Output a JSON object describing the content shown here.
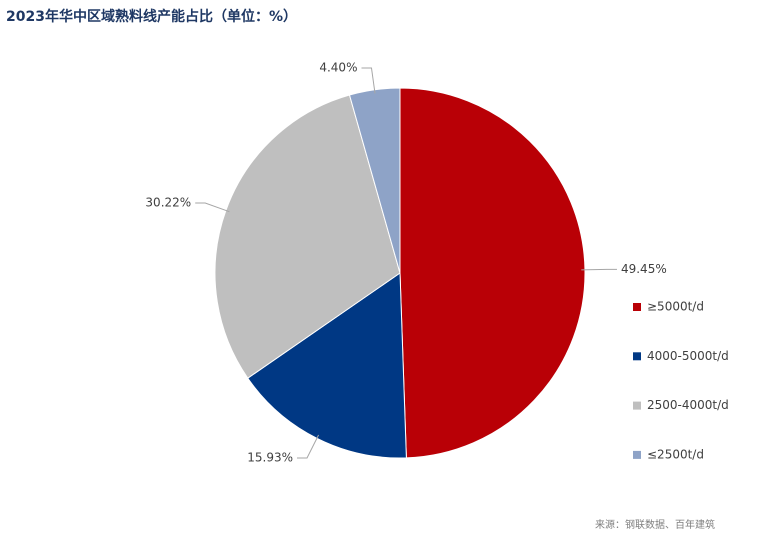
{
  "chart_data": {
    "type": "pie",
    "title": "2023年华中区域熟料线产能占比（单位：%）",
    "categories": [
      "≥5000t/d",
      "4000-5000t/d",
      "2500-4000t/d",
      "≤2500t/d"
    ],
    "values": [
      49.45,
      15.93,
      30.22,
      4.4
    ],
    "value_labels": [
      "49.45%",
      "15.93%",
      "30.22%",
      "4.40%"
    ],
    "colors": [
      "#b90006",
      "#003884",
      "#bfbfbf",
      "#8ea3c7"
    ],
    "legend": "right",
    "source": "来源：钢联数据、百年建筑"
  }
}
